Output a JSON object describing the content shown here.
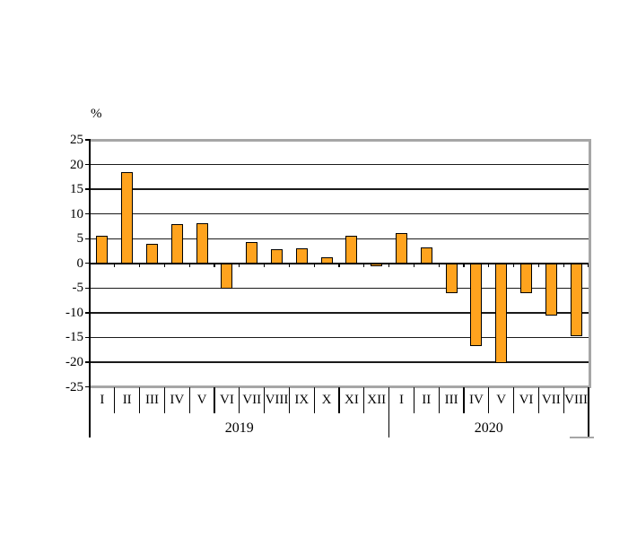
{
  "chart_data": {
    "type": "bar",
    "title": "",
    "ylabel": "%",
    "xlabel": "",
    "ylim": [
      -25,
      25
    ],
    "ytick_step": 5,
    "yticks": [
      25,
      20,
      15,
      10,
      5,
      0,
      -5,
      -10,
      -15,
      -20,
      -25
    ],
    "grid": true,
    "legend": false,
    "bar_color": "#FFA31E",
    "bar_border_color": "#000000",
    "plot_border_color": "#a6a6a6",
    "groups": [
      {
        "year": "2019",
        "categories": [
          "I",
          "II",
          "III",
          "IV",
          "V",
          "VI",
          "VII",
          "VIII",
          "IX",
          "X",
          "XI",
          "XII"
        ],
        "values": [
          5.5,
          18.4,
          4.0,
          8.0,
          8.2,
          -5.2,
          4.4,
          2.9,
          3.1,
          1.3,
          5.6,
          -0.3
        ]
      },
      {
        "year": "2020",
        "categories": [
          "I",
          "II",
          "III",
          "IV",
          "V",
          "VI",
          "VII",
          "VIII"
        ],
        "values": [
          6.2,
          3.2,
          -6.1,
          -16.8,
          -20.2,
          -6.0,
          -10.5,
          -14.7
        ]
      }
    ]
  }
}
